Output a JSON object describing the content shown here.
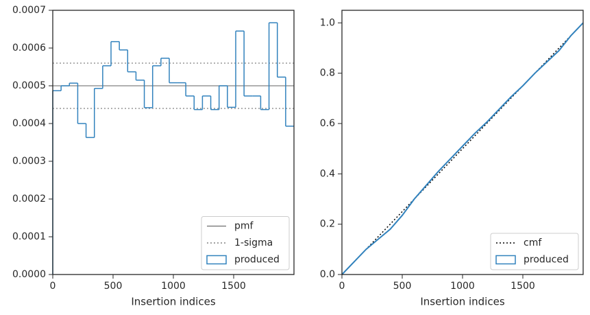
{
  "chart_data": [
    {
      "type": "histogram",
      "xlabel": "Insertion indices",
      "bins": [
        0,
        69,
        138,
        207,
        276,
        345,
        414,
        483,
        552,
        621,
        690,
        759,
        828,
        897,
        966,
        1034,
        1103,
        1172,
        1241,
        1310,
        1379,
        1448,
        1517,
        1586,
        1655,
        1724,
        1793,
        1862,
        1931,
        2000
      ],
      "values": [
        0.000487,
        0.0005,
        0.000507,
        0.0004,
        0.000363,
        0.000493,
        0.000553,
        0.000617,
        0.000595,
        0.000537,
        0.000515,
        0.000442,
        0.000553,
        0.000573,
        0.000508,
        0.000508,
        0.000473,
        0.000437,
        0.000473,
        0.000437,
        0.0005,
        0.000443,
        0.000645,
        0.000473,
        0.000473,
        0.000437,
        0.000667,
        0.000523,
        0.000393
      ],
      "name": "produced",
      "color": "#3182bd",
      "hlines": [
        {
          "name": "pmf",
          "values": [
            0.0005
          ],
          "color": "#808080",
          "style": "solid"
        },
        {
          "name": "1-sigma",
          "values": [
            0.00044,
            0.00056
          ],
          "color": "#808080",
          "style": "dotted"
        }
      ],
      "xlim": [
        0,
        2000
      ],
      "xticks": [
        0,
        500,
        1000,
        1500
      ],
      "ylim": [
        0,
        0.0007
      ],
      "yticks": [
        {
          "value": 0,
          "label": "0.0000"
        },
        {
          "value": 0.0001,
          "label": "0.0001"
        },
        {
          "value": 0.0002,
          "label": "0.0002"
        },
        {
          "value": 0.0003,
          "label": "0.0003"
        },
        {
          "value": 0.0004,
          "label": "0.0004"
        },
        {
          "value": 0.0005,
          "label": "0.0005"
        },
        {
          "value": 0.0006,
          "label": "0.0006"
        },
        {
          "value": 0.0007,
          "label": "0.0007"
        }
      ],
      "legend": "lower right"
    },
    {
      "type": "line",
      "xlabel": "Insertion indices",
      "series": [
        {
          "name": "cmf",
          "color": "#000000",
          "style": "dotted",
          "x": [
            0,
            2000
          ],
          "values": [
            0,
            1
          ]
        },
        {
          "name": "produced",
          "color": "#3182bd",
          "style": "solid",
          "patch": true,
          "x": [
            0,
            100,
            200,
            300,
            400,
            500,
            600,
            700,
            800,
            900,
            1000,
            1100,
            1200,
            1300,
            1400,
            1500,
            1600,
            1700,
            1800,
            1900,
            2000
          ],
          "values": [
            0,
            0.05,
            0.1,
            0.14,
            0.18,
            0.235,
            0.3,
            0.355,
            0.41,
            0.46,
            0.51,
            0.56,
            0.605,
            0.655,
            0.705,
            0.75,
            0.8,
            0.845,
            0.89,
            0.95,
            1.0
          ]
        }
      ],
      "xlim": [
        0,
        2000
      ],
      "xticks": [
        0,
        500,
        1000,
        1500
      ],
      "ylim": [
        0,
        1.05
      ],
      "yticks": [
        {
          "value": 0,
          "label": "0.0"
        },
        {
          "value": 0.2,
          "label": "0.2"
        },
        {
          "value": 0.4,
          "label": "0.4"
        },
        {
          "value": 0.6,
          "label": "0.6"
        },
        {
          "value": 0.8,
          "label": "0.8"
        },
        {
          "value": 1.0,
          "label": "1.0"
        }
      ],
      "legend": "lower right"
    }
  ]
}
